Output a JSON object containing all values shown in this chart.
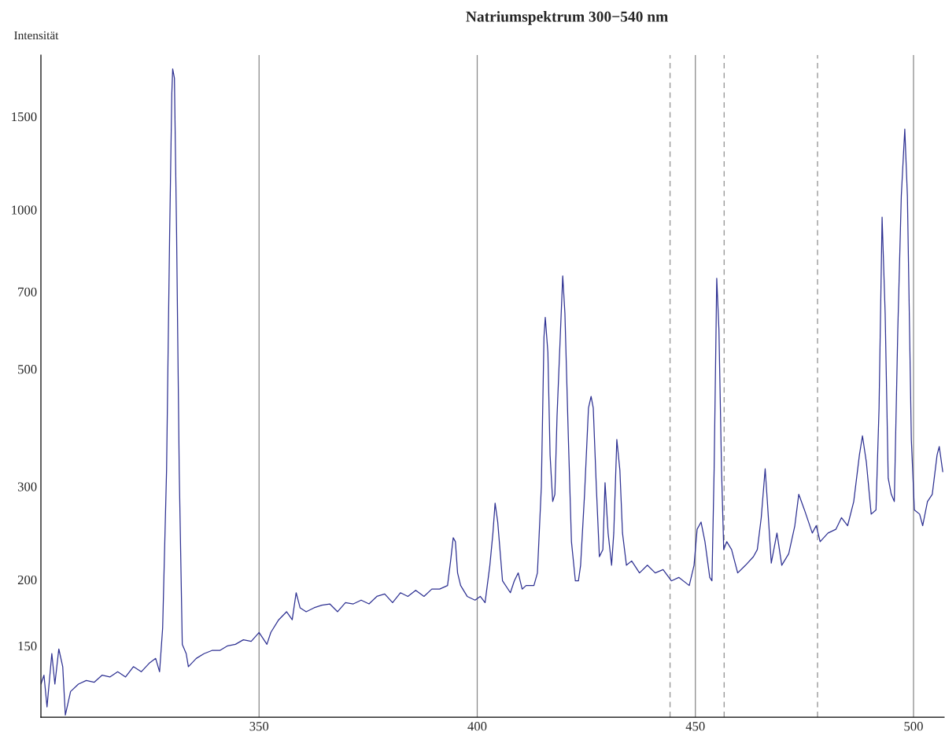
{
  "chart_data": {
    "type": "line",
    "title": "Natriumspektrum 300−540 nm",
    "ylabel": "Intensität",
    "log": "y",
    "grid": "x",
    "xlim": [
      300,
      507
    ],
    "xticks": [
      350,
      400,
      450,
      500
    ],
    "ylim": [
      110,
      1960
    ],
    "yticks": [
      150,
      200,
      300,
      500,
      700,
      1000,
      1500
    ],
    "ref_lines": [
      {
        "axis": "x",
        "value": 444.2,
        "line_style": "dashed",
        "color": "#999999"
      },
      {
        "axis": "x",
        "value": 456.6,
        "line_style": "dashed",
        "color": "#999999"
      },
      {
        "axis": "x",
        "value": 478.0,
        "line_style": "dashed",
        "color": "#999999"
      }
    ],
    "series": [
      {
        "color": "#2e3192",
        "line_style": "solid",
        "marker": "none",
        "x": [
          300,
          300.7,
          301.4,
          302.5,
          303.2,
          304.1,
          305,
          305.6,
          306.8,
          308.6,
          310.4,
          312.2,
          314,
          315.8,
          317.6,
          319.4,
          321.2,
          323,
          324.8,
          326.3,
          327.2,
          327.9,
          328.8,
          329.5,
          330.0,
          330.2,
          330.6,
          331.1,
          331.7,
          332.4,
          333.3,
          333.8,
          335.6,
          337.4,
          339.2,
          341,
          342.8,
          344.6,
          346.4,
          348.2,
          350,
          351.8,
          352.7,
          354.5,
          356.3,
          357.6,
          358.5,
          359.4,
          360.8,
          362.6,
          364.4,
          366.2,
          368,
          369.8,
          371.6,
          373.4,
          375.2,
          377,
          378.8,
          380.6,
          382.4,
          384.1,
          385.9,
          387.8,
          389.6,
          391.4,
          393.2,
          393.9,
          394.5,
          395,
          395.5,
          396.2,
          397.7,
          399.5,
          400.7,
          401.8,
          402.9,
          403.6,
          404.1,
          404.7,
          405.8,
          407.6,
          408.5,
          409.4,
          410.3,
          411.2,
          413,
          413.8,
          414.7,
          415.3,
          415.6,
          416.2,
          416.7,
          417.3,
          417.8,
          418.3,
          419.1,
          419.6,
          420.1,
          420.9,
          421.6,
          422.5,
          423.2,
          423.7,
          424.6,
          425.5,
          426.1,
          426.6,
          427.3,
          428,
          428.8,
          429.3,
          430,
          430.8,
          431.3,
          432,
          432.7,
          433.3,
          434.2,
          435.4,
          437.2,
          439,
          440.8,
          442.6,
          444.5,
          446.2,
          448.6,
          449.7,
          450.4,
          451.3,
          452.2,
          453.3,
          453.8,
          454.3,
          454.9,
          455.4,
          456,
          456.5,
          457.2,
          458.3,
          459.7,
          461.5,
          463.3,
          464.2,
          465.1,
          466,
          466.5,
          467.4,
          468.7,
          469.8,
          471.4,
          472.8,
          473.7,
          475,
          476.8,
          477.7,
          478.6,
          480.4,
          482.2,
          483.5,
          484.9,
          486.3,
          487.6,
          488.3,
          489.2,
          490.3,
          491.4,
          492.1,
          492.8,
          493.5,
          494.2,
          494.9,
          495.6,
          496.4,
          497.2,
          498,
          498.6,
          499.5,
          500.2,
          501.4,
          502.1,
          503.2,
          504.3,
          505.4,
          505.9,
          506.7
        ],
        "values": [
          127,
          132,
          115,
          145,
          127,
          148,
          137,
          111,
          123,
          127,
          129,
          128,
          132,
          131,
          134,
          131,
          137,
          134,
          139,
          142,
          134,
          162,
          322,
          895,
          1656,
          1845,
          1773,
          895,
          322,
          151,
          145,
          137,
          142,
          145,
          147,
          147,
          150,
          151,
          154,
          153,
          159,
          151,
          159,
          168,
          174,
          168,
          189,
          177,
          174,
          177,
          179,
          180,
          174,
          181,
          180,
          183,
          180,
          186,
          188,
          181,
          189,
          186,
          191,
          186,
          192,
          192,
          195,
          217,
          240,
          236,
          206,
          195,
          186,
          183,
          186,
          181,
          213,
          245,
          279,
          257,
          199,
          189,
          199,
          206,
          192,
          195,
          195,
          206,
          300,
          574,
          626,
          537,
          344,
          281,
          290,
          408,
          594,
          750,
          637,
          368,
          236,
          199,
          199,
          213,
          290,
          422,
          444,
          422,
          300,
          221,
          228,
          305,
          245,
          213,
          245,
          368,
          322,
          245,
          213,
          217,
          206,
          213,
          206,
          209,
          199,
          202,
          195,
          213,
          249,
          257,
          236,
          202,
          199,
          322,
          742,
          594,
          322,
          228,
          236,
          228,
          206,
          213,
          221,
          228,
          262,
          324,
          281,
          215,
          245,
          213,
          224,
          253,
          290,
          271,
          245,
          253,
          236,
          245,
          249,
          262,
          253,
          281,
          344,
          374,
          333,
          266,
          271,
          422,
          968,
          637,
          311,
          290,
          281,
          594,
          1062,
          1420,
          1062,
          368,
          271,
          266,
          253,
          281,
          290,
          344,
          357,
          320
        ]
      }
    ]
  }
}
